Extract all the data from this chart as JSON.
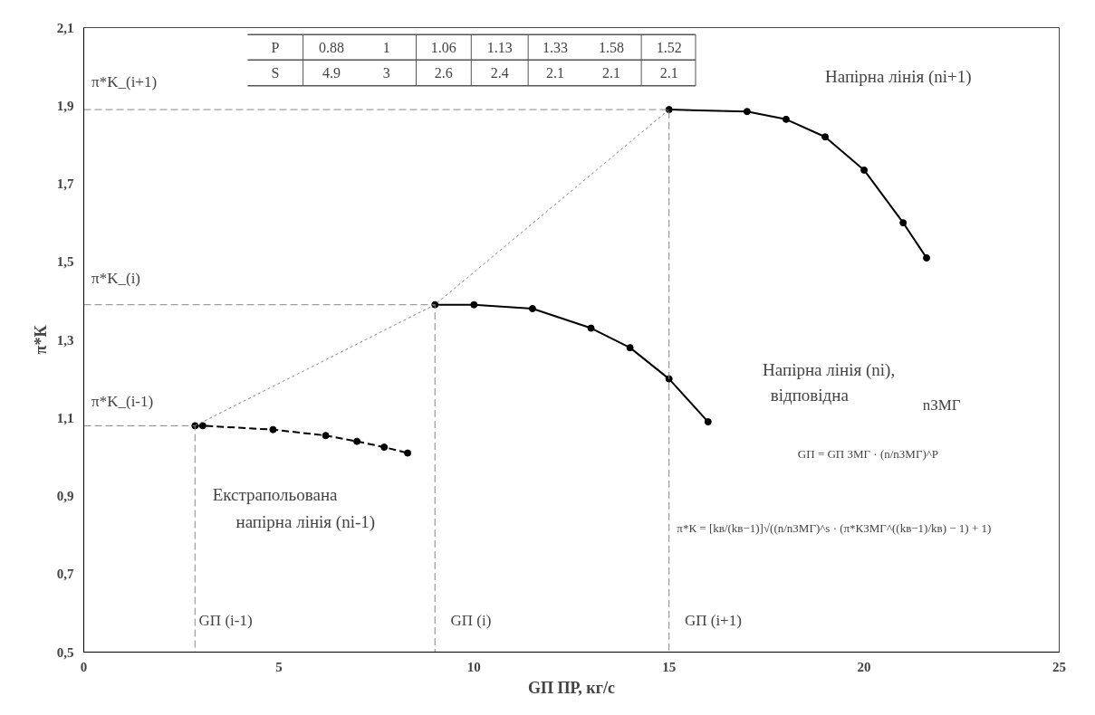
{
  "chart_data": {
    "type": "line",
    "xlabel": "GП ПР, кг/с",
    "ylabel": "π*К",
    "xlim": [
      0,
      25
    ],
    "xticks": [
      0,
      5,
      10,
      15,
      20,
      25
    ],
    "ylim": [
      0.5,
      2.1
    ],
    "yticks": [
      {
        "value": 0.5,
        "label": "0,5"
      },
      {
        "value": 0.7,
        "label": "0,7"
      },
      {
        "value": 0.9,
        "label": "0,9"
      },
      {
        "value": 1.1,
        "label": "1,1"
      },
      {
        "value": 1.3,
        "label": "1,3"
      },
      {
        "value": 1.5,
        "label": "1,5"
      },
      {
        "value": 1.7,
        "label": "1,7"
      },
      {
        "value": 1.9,
        "label": "1,9"
      },
      {
        "value": 2.1,
        "label": "2,1"
      }
    ],
    "grid": false,
    "series": [
      {
        "color": "#000000",
        "line_style": "dashed",
        "marker": "circle",
        "x": [
          2.85,
          3.05,
          4.85,
          6.2,
          7.0,
          7.7,
          8.3
        ],
        "values": [
          1.08,
          1.08,
          1.07,
          1.055,
          1.04,
          1.025,
          1.01
        ]
      },
      {
        "color": "#000000",
        "line_style": "solid",
        "marker": "circle",
        "x": [
          9,
          10,
          11.5,
          13,
          14,
          15,
          16
        ],
        "values": [
          1.39,
          1.39,
          1.38,
          1.33,
          1.28,
          1.2,
          1.09
        ]
      },
      {
        "color": "#000000",
        "line_style": "solid",
        "marker": "circle",
        "x": [
          15,
          17,
          18,
          19,
          20,
          21,
          21.6
        ],
        "values": [
          1.89,
          1.885,
          1.865,
          1.82,
          1.735,
          1.6,
          1.51
        ]
      },
      {
        "color": "#888888",
        "line_style": "dashed",
        "marker": "none",
        "x": [
          0,
          15,
          15
        ],
        "values": [
          1.89,
          1.89,
          0.5
        ]
      },
      {
        "color": "#888888",
        "line_style": "dashed",
        "marker": "none",
        "x": [
          0,
          9,
          9
        ],
        "values": [
          1.39,
          1.39,
          0.5
        ]
      },
      {
        "color": "#888888",
        "line_style": "dashed",
        "marker": "none",
        "x": [
          0,
          2.85,
          2.85
        ],
        "values": [
          1.08,
          1.08,
          0.5
        ]
      },
      {
        "color": "#888888",
        "line_style": "dotted",
        "marker": "none",
        "x": [
          2.85,
          9,
          15
        ],
        "values": [
          1.08,
          1.39,
          1.89
        ]
      }
    ],
    "annotations": [
      "π*K_(i+1)",
      "π*K_(i)",
      "π*K_(i-1)",
      "GП (i-1)",
      "GП (i)",
      "GП (i+1)",
      "Напірна лінія (ni+1)",
      "Напірна лінія (ni),",
      "відповідна",
      "nЗМГ",
      "Екстрапольована",
      "напірна лінія  (ni-1)",
      "GП = GП ЗМГ · (n/nЗМГ)^P",
      "π*К = [kв/(kв−1)]√((n/nЗМГ)^s · (π*КЗМГ^((kв−1)/kв) − 1) + 1)",
      "P",
      "0.88",
      "1",
      "1.06",
      "1.13",
      "1.33",
      "1.58",
      "1.52",
      "S",
      "4.9",
      "3",
      "2.6",
      "2.4",
      "2.1",
      "2.1",
      "2.1"
    ]
  }
}
